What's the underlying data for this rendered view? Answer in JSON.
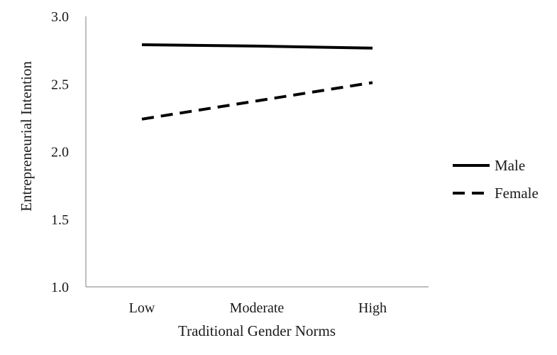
{
  "chart_data": {
    "type": "line",
    "categories": [
      "Low",
      "Moderate",
      "High"
    ],
    "series": [
      {
        "name": "Male",
        "values": [
          2.79,
          2.78,
          2.765
        ],
        "line_style": "solid"
      },
      {
        "name": "Female",
        "values": [
          2.24,
          2.375,
          2.51
        ],
        "line_style": "dashed"
      }
    ],
    "xlabel": "Traditional Gender Norms",
    "ylabel": "Entrepreneurial Intention",
    "ylim": [
      1.0,
      3.0
    ],
    "yticks": [
      "1.0",
      "1.5",
      "2.0",
      "2.5",
      "3.0"
    ],
    "grid": false,
    "legend_position": "right",
    "line_color": "#000000"
  }
}
